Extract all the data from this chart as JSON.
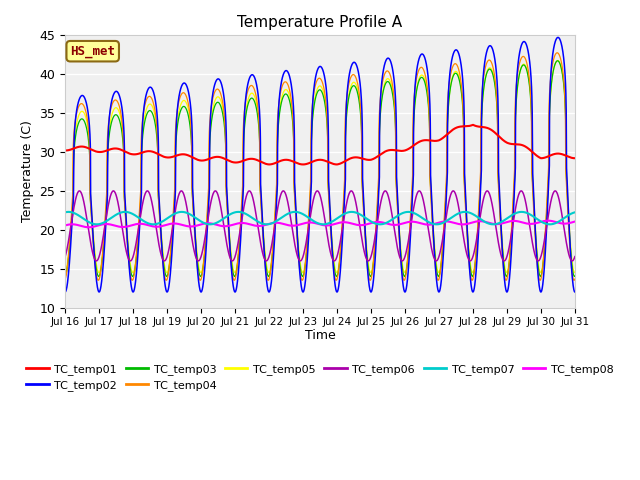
{
  "title": "Temperature Profile A",
  "xlabel": "Time",
  "ylabel": "Temperature (C)",
  "ylim": [
    10,
    45
  ],
  "annotation_label": "HS_met",
  "plot_bg_color": "#f0f0f0",
  "series_colors": {
    "TC_temp01": "#ff0000",
    "TC_temp02": "#0000ff",
    "TC_temp03": "#00bb00",
    "TC_temp04": "#ff8800",
    "TC_temp05": "#ffff00",
    "TC_temp06": "#aa00aa",
    "TC_temp07": "#00cccc",
    "TC_temp08": "#ff00ff"
  },
  "xtick_labels": [
    "Jul 16",
    "Jul 17",
    "Jul 18",
    "Jul 19",
    "Jul 20",
    "Jul 21",
    "Jul 22",
    "Jul 23",
    "Jul 24",
    "Jul 25",
    "Jul 26",
    "Jul 27",
    "Jul 28",
    "Jul 29",
    "Jul 30",
    "Jul 31"
  ],
  "yticks": [
    10,
    15,
    20,
    25,
    30,
    35,
    40,
    45
  ]
}
